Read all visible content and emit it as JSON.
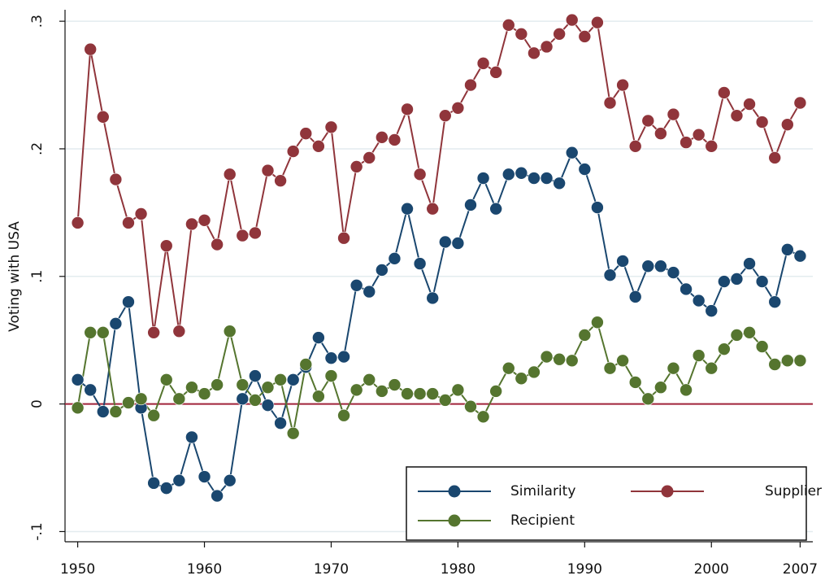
{
  "chart_data": {
    "type": "line",
    "y_label": "Voting with USA",
    "x": [
      1950,
      1951,
      1952,
      1953,
      1954,
      1955,
      1956,
      1957,
      1958,
      1959,
      1960,
      1961,
      1962,
      1963,
      1964,
      1965,
      1966,
      1967,
      1968,
      1969,
      1970,
      1971,
      1972,
      1973,
      1974,
      1975,
      1976,
      1977,
      1978,
      1979,
      1980,
      1981,
      1982,
      1983,
      1984,
      1985,
      1986,
      1987,
      1988,
      1989,
      1990,
      1991,
      1992,
      1993,
      1994,
      1995,
      1996,
      1997,
      1998,
      1999,
      2000,
      2001,
      2002,
      2003,
      2004,
      2005,
      2006,
      2007
    ],
    "series": [
      {
        "name": "Similarity",
        "color": "#1a476f",
        "values": [
          0.019,
          0.011,
          -0.006,
          0.063,
          0.08,
          -0.003,
          -0.062,
          -0.066,
          -0.06,
          -0.026,
          -0.057,
          -0.072,
          -0.06,
          0.004,
          0.022,
          -0.001,
          -0.015,
          0.019,
          0.029,
          0.052,
          0.036,
          0.037,
          0.093,
          0.088,
          0.105,
          0.114,
          0.153,
          0.11,
          0.083,
          0.127,
          0.126,
          0.156,
          0.177,
          0.153,
          0.18,
          0.181,
          0.177,
          0.177,
          0.173,
          0.197,
          0.184,
          0.154,
          0.101,
          0.112,
          0.084,
          0.108,
          0.108,
          0.103,
          0.09,
          0.081,
          0.073,
          0.096,
          0.098,
          0.11,
          0.096,
          0.08,
          0.121,
          0.116
        ]
      },
      {
        "name": "Supplier",
        "color": "#90353b",
        "values": [
          0.142,
          0.278,
          0.225,
          0.176,
          0.142,
          0.149,
          0.056,
          0.124,
          0.057,
          0.141,
          0.144,
          0.125,
          0.18,
          0.132,
          0.134,
          0.183,
          0.175,
          0.198,
          0.212,
          0.202,
          0.217,
          0.13,
          0.186,
          0.193,
          0.209,
          0.207,
          0.231,
          0.18,
          0.153,
          0.226,
          0.232,
          0.25,
          0.267,
          0.26,
          0.297,
          0.29,
          0.275,
          0.28,
          0.29,
          0.301,
          0.288,
          0.299,
          0.236,
          0.25,
          0.202,
          0.222,
          0.212,
          0.227,
          0.205,
          0.211,
          0.202,
          0.244,
          0.226,
          0.235,
          0.221,
          0.193,
          0.219,
          0.236
        ]
      },
      {
        "name": "Recipient",
        "color": "#55752f",
        "values": [
          -0.003,
          0.056,
          0.056,
          -0.006,
          0.001,
          0.004,
          -0.009,
          0.019,
          0.004,
          0.013,
          0.008,
          0.015,
          0.057,
          0.015,
          0.003,
          0.013,
          0.019,
          -0.023,
          0.031,
          0.006,
          0.022,
          -0.009,
          0.011,
          0.019,
          0.01,
          0.015,
          0.008,
          0.008,
          0.008,
          0.003,
          0.011,
          -0.002,
          -0.01,
          0.01,
          0.028,
          0.02,
          0.025,
          0.037,
          0.035,
          0.034,
          0.054,
          0.064,
          0.028,
          0.034,
          0.017,
          0.004,
          0.013,
          0.028,
          0.011,
          0.038,
          0.028,
          0.043,
          0.054,
          0.056,
          0.045,
          0.031,
          0.034,
          0.034
        ]
      }
    ],
    "xlim": [
      1949,
      2008
    ],
    "xticks": [
      1950,
      1960,
      1970,
      1980,
      1990,
      2000,
      2007
    ],
    "ylim": [
      -0.108,
      0.309
    ],
    "yticks": [
      {
        "value": -0.1,
        "label": "-.1"
      },
      0,
      {
        "value": 0.1,
        "label": ".1"
      },
      {
        "value": 0.2,
        "label": ".2"
      },
      {
        "value": 0.3,
        "label": ".3"
      }
    ],
    "grid": true,
    "reference_line": {
      "value": 0,
      "color": "#a0233a"
    },
    "legend": "bottom-right"
  }
}
